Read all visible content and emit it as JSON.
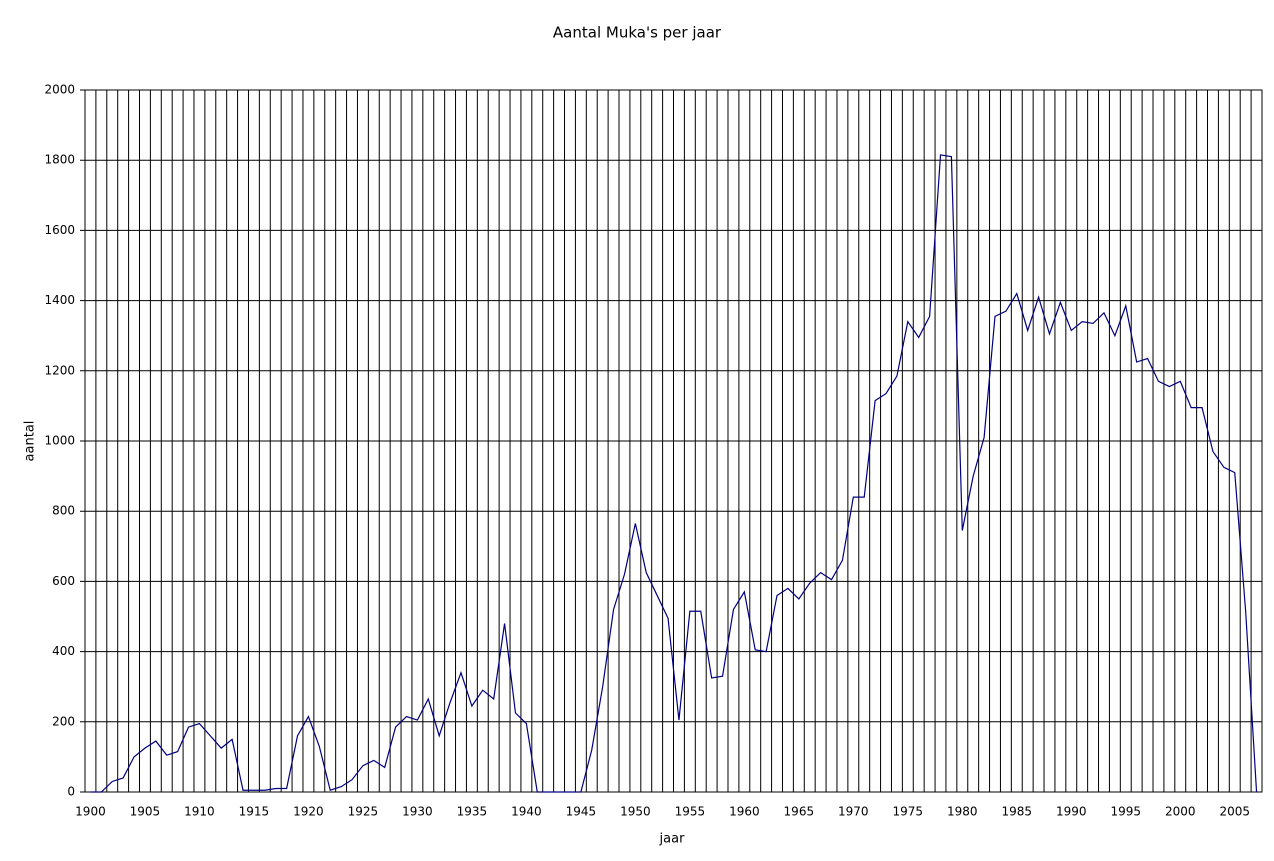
{
  "chart_data": {
    "type": "line",
    "title": "Aantal Muka's per jaar",
    "x_label": "jaar",
    "y_label": "aantal",
    "color": "#000080",
    "grid": true,
    "categories": [
      "1900",
      null,
      null,
      null,
      null,
      "1905",
      null,
      null,
      null,
      null,
      "1910",
      null,
      null,
      null,
      null,
      "1915",
      null,
      null,
      null,
      null,
      "1920",
      null,
      null,
      null,
      null,
      "1925",
      null,
      null,
      null,
      null,
      "1930",
      null,
      null,
      null,
      null,
      "1935",
      null,
      null,
      null,
      null,
      "1940",
      null,
      null,
      null,
      null,
      "1945",
      null,
      null,
      null,
      null,
      "1950",
      null,
      null,
      null,
      null,
      "1955",
      null,
      null,
      null,
      null,
      "1960",
      null,
      null,
      null,
      null,
      "1965",
      null,
      null,
      null,
      null,
      "1970",
      null,
      null,
      null,
      null,
      "1975",
      null,
      null,
      null,
      null,
      "1980",
      null,
      null,
      null,
      null,
      "1985",
      null,
      null,
      null,
      null,
      "1990",
      null,
      null,
      null,
      null,
      "1995",
      null,
      null,
      null,
      null,
      "2000",
      null,
      null,
      null,
      null,
      "2005",
      null,
      null
    ],
    "values": [
      0,
      0,
      30,
      40,
      100,
      125,
      145,
      105,
      115,
      185,
      195,
      160,
      125,
      150,
      5,
      5,
      5,
      10,
      10,
      160,
      215,
      130,
      5,
      15,
      35,
      75,
      90,
      70,
      185,
      215,
      205,
      265,
      160,
      255,
      340,
      245,
      290,
      265,
      480,
      225,
      195,
      0,
      0,
      0,
      0,
      0,
      120,
      300,
      520,
      620,
      765,
      625,
      560,
      495,
      205,
      515,
      515,
      325,
      330,
      520,
      570,
      405,
      400,
      560,
      580,
      550,
      595,
      625,
      605,
      660,
      840,
      840,
      1115,
      1135,
      1185,
      1340,
      1295,
      1355,
      1815,
      1810,
      745,
      900,
      1010,
      1355,
      1370,
      1420,
      1315,
      1410,
      1305,
      1395,
      1315,
      1340,
      1335,
      1365,
      1300,
      1385,
      1225,
      1235,
      1170,
      1155,
      1170,
      1095,
      1095,
      970,
      925,
      910,
      515,
      0
    ],
    "ylim": [
      0,
      2000
    ],
    "yticks": [
      0,
      200,
      400,
      600,
      800,
      1000,
      1200,
      1400,
      1600,
      1800,
      2000
    ]
  }
}
